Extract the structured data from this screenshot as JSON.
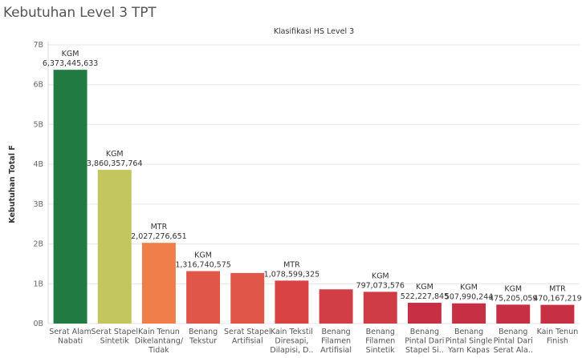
{
  "page": {
    "title": "Kebutuhan Level 3 TPT"
  },
  "chart_data": {
    "type": "bar",
    "title": "Kebutuhan Level 3 TPT",
    "header": "Klasifikasi HS Level 3",
    "ylabel": "Kebutuhan Total F",
    "xlabel": "",
    "ylim": [
      0,
      7000000000
    ],
    "yticks": [
      {
        "value": 0,
        "label": "0B"
      },
      {
        "value": 1000000000,
        "label": "1B"
      },
      {
        "value": 2000000000,
        "label": "2B"
      },
      {
        "value": 3000000000,
        "label": "3B"
      },
      {
        "value": 4000000000,
        "label": "4B"
      },
      {
        "value": 5000000000,
        "label": "5B"
      },
      {
        "value": 6000000000,
        "label": "6B"
      },
      {
        "value": 7000000000,
        "label": "7B"
      }
    ],
    "grid": true,
    "categories": [
      [
        "Serat Alam",
        "Nabati"
      ],
      [
        "Serat Stapel",
        "Sintetik"
      ],
      [
        "Kain Tenun",
        "Dikelantang/",
        "Tidak"
      ],
      [
        "Benang",
        "Tekstur"
      ],
      [
        "Serat Stapel",
        "Artifisial"
      ],
      [
        "Kain Tekstil",
        "Diresapi,",
        "Dilapisi, D.."
      ],
      [
        "Benang",
        "Filamen",
        "Artifisial"
      ],
      [
        "Benang",
        "Filamen",
        "Sintetik"
      ],
      [
        "Benang",
        "Pintal Dari",
        "Stapel Si.."
      ],
      [
        "Benang",
        "Pintal Single",
        "Yarn Kapas"
      ],
      [
        "Benang",
        "Pintal Dari",
        "Serat Ala.."
      ],
      [
        "Kain Tenun",
        "Finish"
      ]
    ],
    "values": [
      6373445633,
      3860357764,
      2027276651,
      1316740575,
      1270000000,
      1078599325,
      860000000,
      797073576,
      522227845,
      507990244,
      475205059,
      470167219
    ],
    "units": [
      "KGM",
      "KGM",
      "MTR",
      "KGM",
      "",
      "MTR",
      "",
      "KGM",
      "KGM",
      "KGM",
      "KGM",
      "MTR"
    ],
    "value_labels": [
      "6,373,445,633",
      "3,860,357,764",
      "2,027,276,651",
      "1,316,740,575",
      "",
      "1,078,599,325",
      "",
      "797,073,576",
      "522,227,845",
      "507,990,244",
      "475,205,059",
      "470,167,219"
    ],
    "colors": [
      "#217a42",
      "#c3c55e",
      "#f07e4a",
      "#e0574a",
      "#e0574a",
      "#d94344",
      "#d13e46",
      "#cf3c46",
      "#c62f44",
      "#c62f44",
      "#c62f44",
      "#c62f44"
    ]
  }
}
